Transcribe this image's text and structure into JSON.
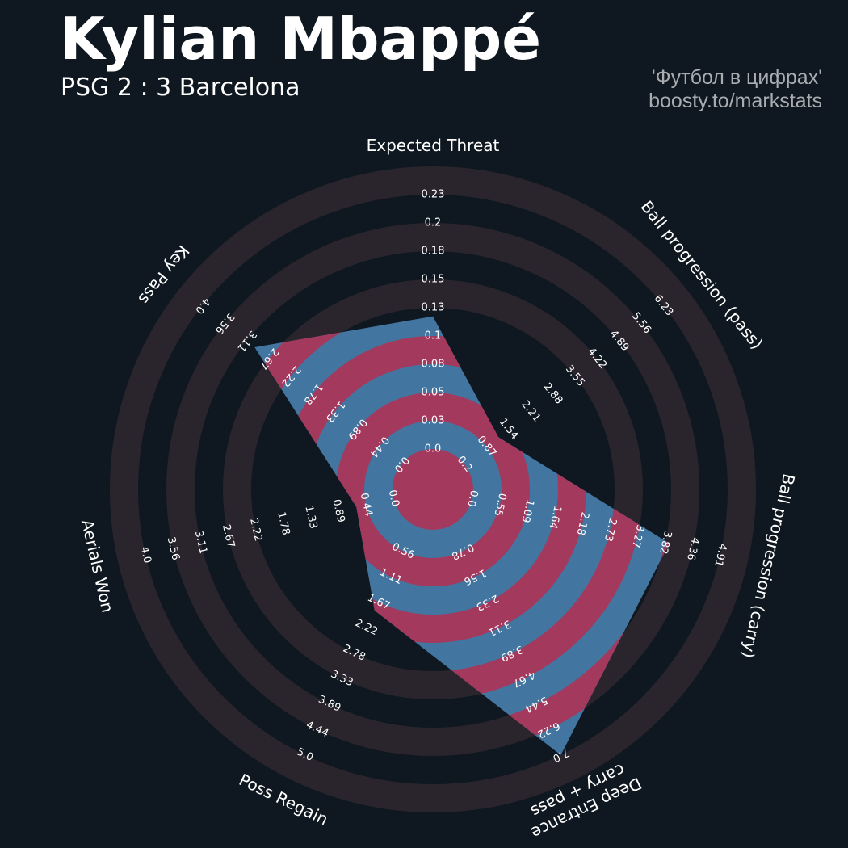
{
  "header": {
    "title": "Kylian Mbappé",
    "subtitle": "PSG 2 : 3 Barcelona",
    "credit_line1": "'Футбол в цифрах'",
    "credit_line2": "boosty.to/markstats"
  },
  "colors": {
    "background": "#0f1820",
    "ring": "#2a252d",
    "player_fill": "#4275a0",
    "band": "#a33a5e",
    "text": "#ffffff"
  },
  "chart_data": {
    "type": "radar",
    "title": "Kylian Mbappé",
    "subtitle": "PSG 2 : 3 Barcelona",
    "params": [
      {
        "label": "Expected Threat",
        "label_lines": [
          "Expected Threat"
        ],
        "value": 0.12,
        "ticks": [
          "0.0",
          "0.03",
          "0.05",
          "0.08",
          "0.1",
          "0.13",
          "0.15",
          "0.18",
          "0.2",
          "0.23"
        ]
      },
      {
        "label": "Ball progression (pass)",
        "label_lines": [
          "Ball progression (pass)"
        ],
        "value": 1.23,
        "ticks": [
          "0.2",
          "0.87",
          "1.54",
          "2.21",
          "2.88",
          "3.55",
          "4.22",
          "4.89",
          "5.56",
          "6.23"
        ]
      },
      {
        "label": "Ball progression (carry)",
        "label_lines": [
          "Ball progression (carry)"
        ],
        "value": 3.9,
        "ticks": [
          "0.0",
          "0.55",
          "1.09",
          "1.64",
          "2.18",
          "2.73",
          "3.27",
          "3.82",
          "4.36",
          "4.91"
        ]
      },
      {
        "label": "Deep Entrance carry + pass",
        "label_lines": [
          "Deep Entrance",
          "carry + pass"
        ],
        "value": 7.0,
        "ticks": [
          "0.78",
          "1.56",
          "2.33",
          "3.11",
          "3.89",
          "4.67",
          "5.44",
          "6.22",
          "7.0"
        ]
      },
      {
        "label": "Poss Regain",
        "label_lines": [
          "Poss Regain"
        ],
        "value": 1.85,
        "ticks": [
          "0.56",
          "1.11",
          "1.67",
          "2.22",
          "2.78",
          "3.33",
          "3.89",
          "4.44",
          "5.0"
        ]
      },
      {
        "label": "Aerials Won",
        "label_lines": [
          "Aerials Won"
        ],
        "value": 0.6,
        "ticks": [
          "0.0",
          "0.44",
          "0.89",
          "1.33",
          "1.78",
          "2.22",
          "2.67",
          "3.11",
          "3.56",
          "4.0"
        ]
      },
      {
        "label": "Key Pass",
        "label_lines": [
          "Key Pass"
        ],
        "value": 2.95,
        "ticks": [
          "0.0",
          "0.44",
          "0.89",
          "1.33",
          "1.78",
          "2.22",
          "2.67",
          "3.11",
          "3.56",
          "4.0"
        ]
      }
    ]
  }
}
